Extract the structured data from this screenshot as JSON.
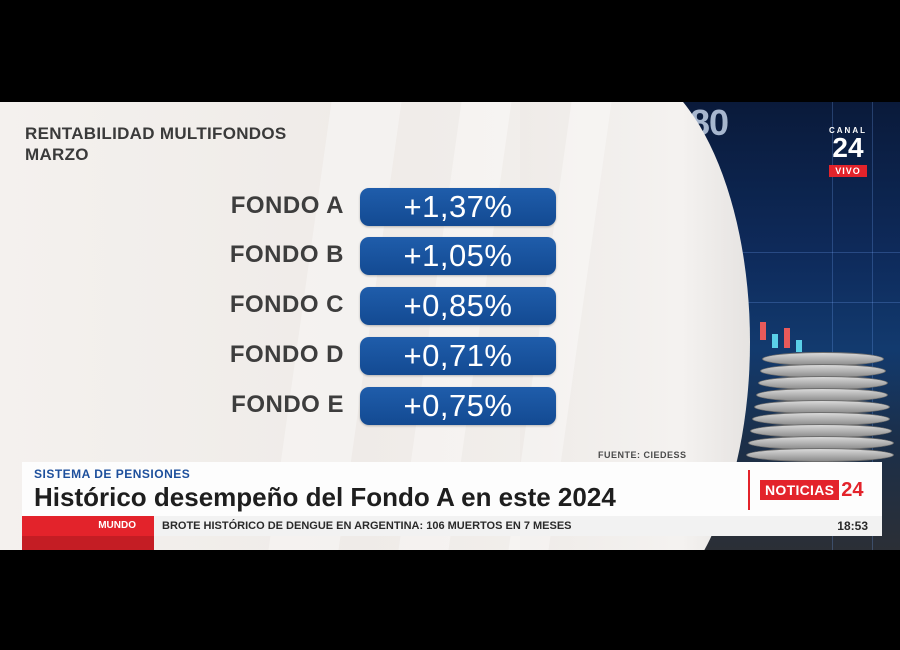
{
  "logo": {
    "canal": "CANAL",
    "number": "24",
    "live": "VIVO"
  },
  "background_number": "80",
  "title": {
    "line1": "RENTABILIDAD MULTIFONDOS",
    "line2": "MARZO"
  },
  "funds": [
    {
      "label": "FONDO A",
      "value": "+1,37%"
    },
    {
      "label": "FONDO B",
      "value": "+1,05%"
    },
    {
      "label": "FONDO C",
      "value": "+0,85%"
    },
    {
      "label": "FONDO D",
      "value": "+0,71%"
    },
    {
      "label": "FONDO E",
      "value": "+0,75%"
    }
  ],
  "source": "FUENTE: CIEDESS",
  "lower_third": {
    "category": "SISTEMA DE PENSIONES",
    "headline": "Histórico desempeño del Fondo A en este 2024",
    "brand_word": "NOTICIAS",
    "brand_number": "24"
  },
  "ticker": {
    "section": "MUNDO",
    "text": "BROTE HISTÓRICO DE DENGUE EN ARGENTINA: 106 MUERTOS EN 7 MESES",
    "time": "18:53"
  },
  "colors": {
    "pill_blue": "#1a55a0",
    "accent_red": "#e3232b",
    "category_blue": "#1d4f9c"
  }
}
